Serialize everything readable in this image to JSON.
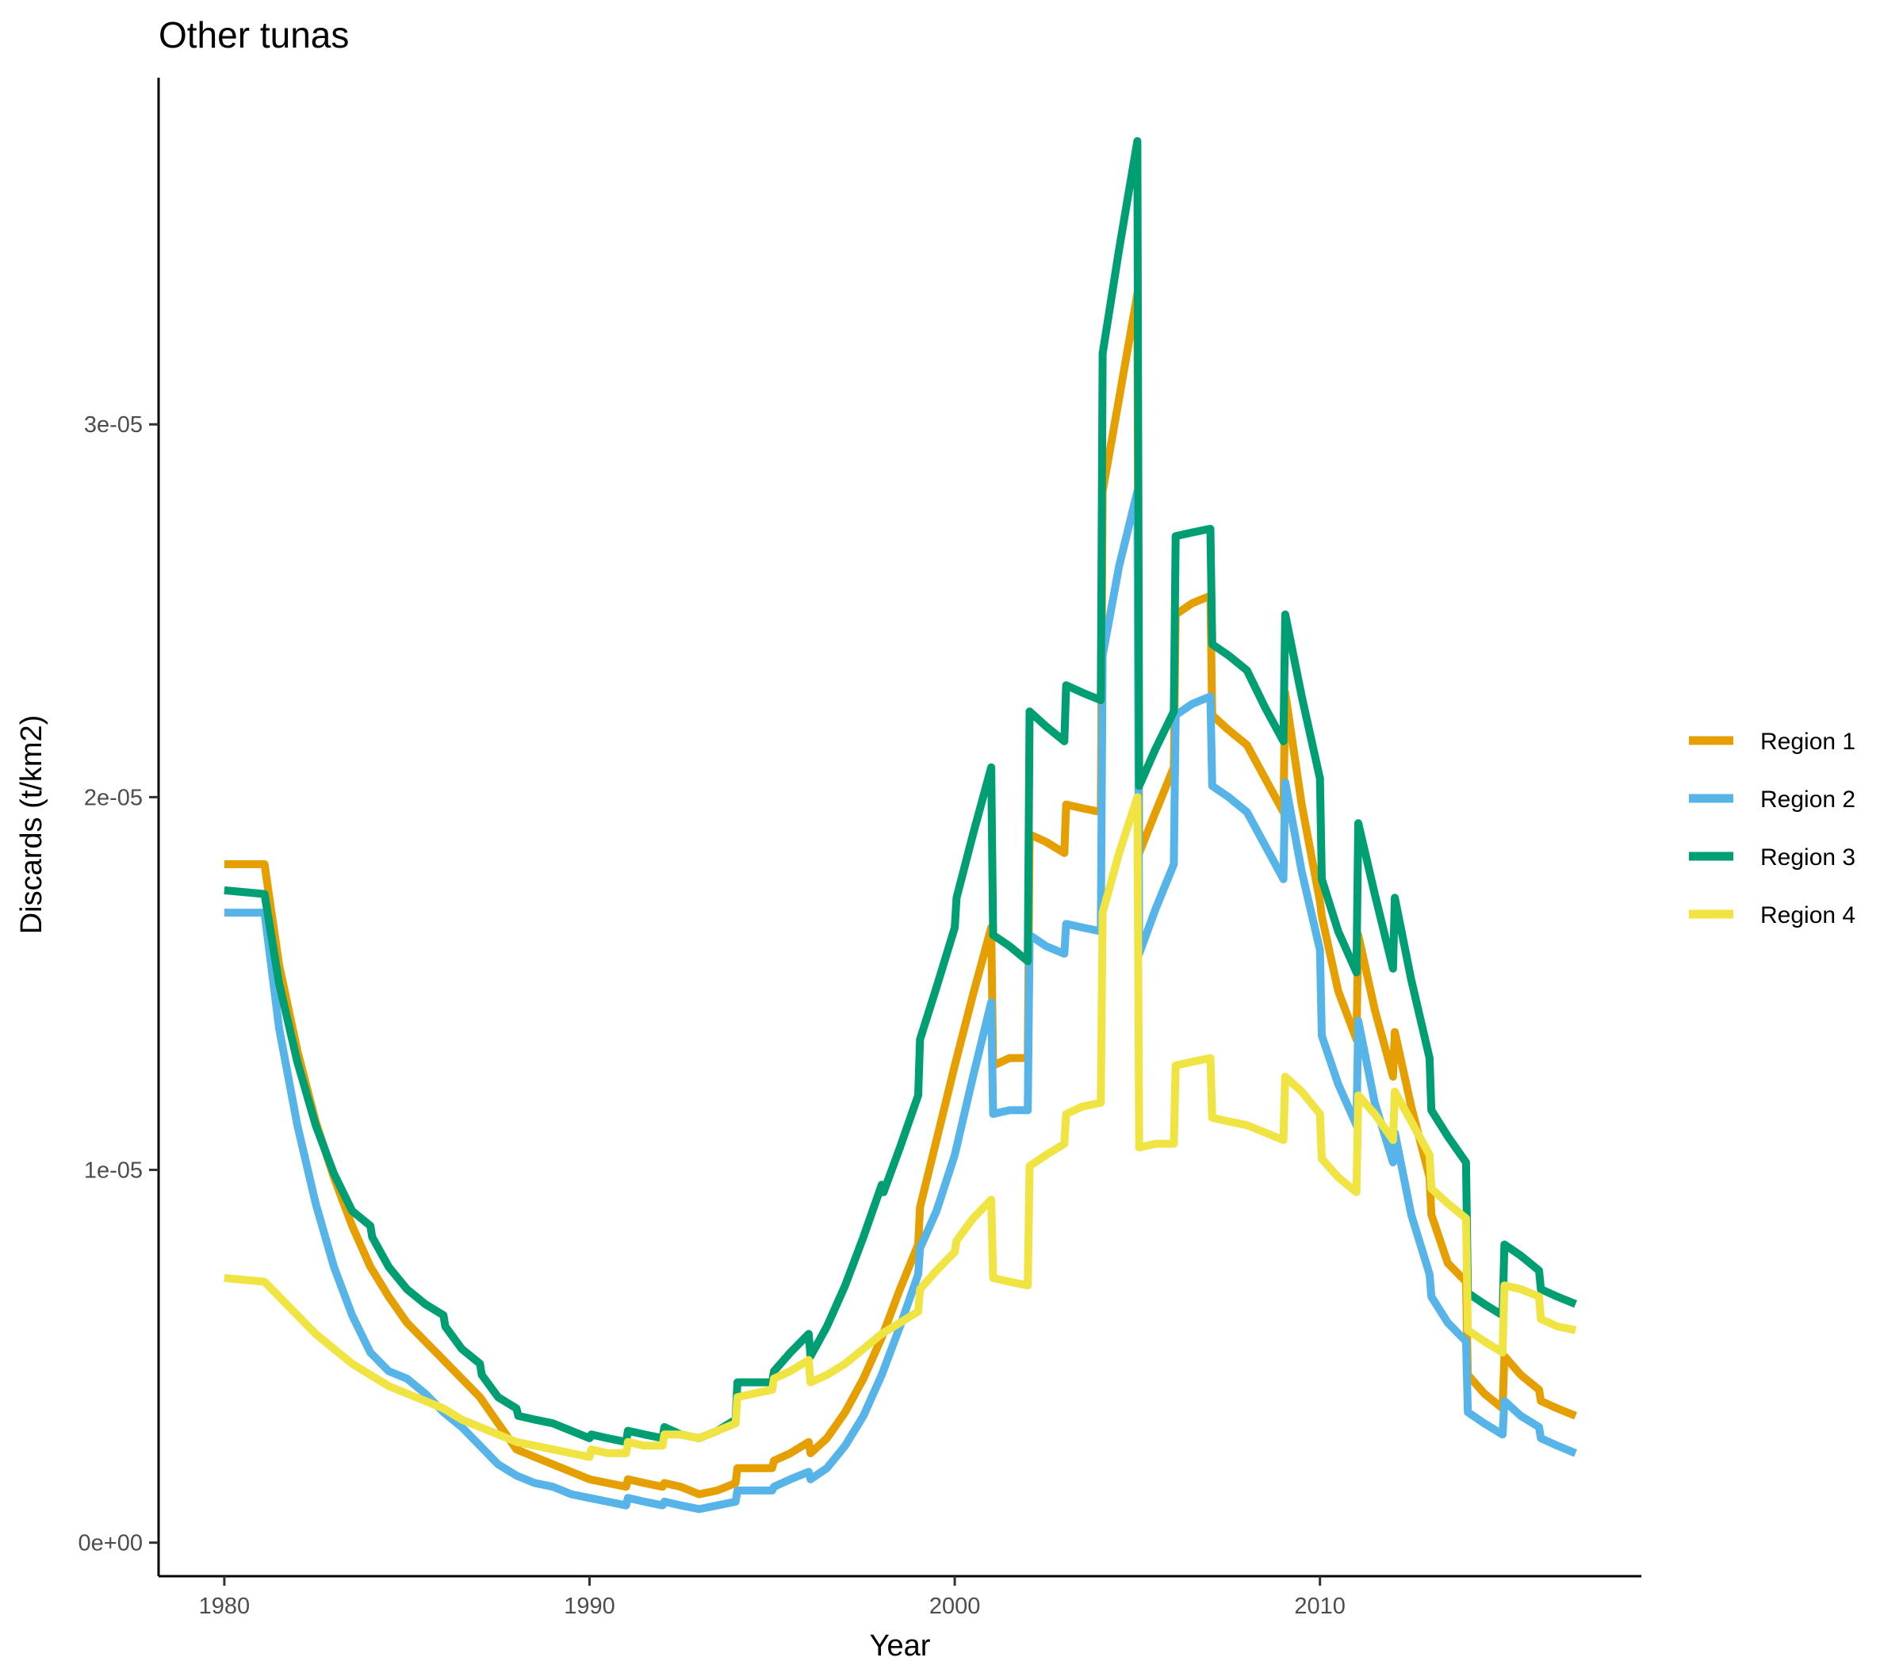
{
  "chart_data": {
    "type": "line",
    "title": "Other tunas",
    "xlabel": "Year",
    "ylabel": "Discards (t/km2)",
    "xlim": [
      1978.2,
      2018.8
    ],
    "ylim": [
      -9e-07,
      3.93e-05
    ],
    "x_ticks": [
      1980,
      1990,
      2000,
      2010
    ],
    "y_ticks": [
      {
        "value": 0,
        "label": "0e+00"
      },
      {
        "value": 1e-05,
        "label": "1e-05"
      },
      {
        "value": 2e-05,
        "label": "2e-05"
      },
      {
        "value": 3e-05,
        "label": "3e-05"
      }
    ],
    "grid": false,
    "legend_position": "right",
    "series": [
      {
        "name": "Region 1",
        "color": "#E69F00",
        "x": [
          1980,
          1981.1,
          1981.5,
          1982,
          1982.5,
          1983,
          1983.5,
          1984,
          1984.5,
          1985,
          1985.5,
          1986,
          1986.5,
          1987,
          1987.5,
          1988,
          1988.5,
          1989,
          1989.5,
          1990,
          1990.5,
          1991,
          1991.05,
          1991.5,
          1992,
          1992.05,
          1992.5,
          1993,
          1993.5,
          1994,
          1994.05,
          1994.5,
          1995,
          1995.05,
          1995.5,
          1996,
          1996.05,
          1996.5,
          1997,
          1997.5,
          1998,
          1998.5,
          1999,
          1999.05,
          1999.5,
          2000,
          2000.5,
          2001,
          2001.05,
          2001.5,
          2002,
          2002.05,
          2002.5,
          2003,
          2003.05,
          2003.5,
          2004,
          2004.05,
          2004.5,
          2005,
          2005.05,
          2005.5,
          2006,
          2006.05,
          2006.5,
          2007,
          2007.05,
          2007.5,
          2008,
          2008.5,
          2009,
          2009.05,
          2009.5,
          2010,
          2010.05,
          2010.5,
          2011,
          2011.05,
          2011.5,
          2012,
          2012.05,
          2012.5,
          2013,
          2013.05,
          2013.5,
          2014,
          2014.05,
          2014.5,
          2015,
          2015.05,
          2015.5,
          2016,
          2016.05,
          2016.5,
          2017
        ],
        "y": [
          1.82e-05,
          1.82e-05,
          1.55e-05,
          1.32e-05,
          1.13e-05,
          9.8e-06,
          8.5e-06,
          7.4e-06,
          6.6e-06,
          5.9e-06,
          5.4e-06,
          4.9e-06,
          4.4e-06,
          3.9e-06,
          3.2e-06,
          2.5e-06,
          2.3e-06,
          2.1e-06,
          1.9e-06,
          1.7e-06,
          1.6e-06,
          1.5e-06,
          1.7e-06,
          1.6e-06,
          1.5e-06,
          1.6e-06,
          1.5e-06,
          1.3e-06,
          1.4e-06,
          1.6e-06,
          2e-06,
          2e-06,
          2e-06,
          2.2e-06,
          2.4e-06,
          2.7e-06,
          2.4e-06,
          2.8e-06,
          3.5e-06,
          4.4e-06,
          5.5e-06,
          6.8e-06,
          8e-06,
          9e-06,
          1.08e-05,
          1.28e-05,
          1.47e-05,
          1.65e-05,
          1.28e-05,
          1.3e-05,
          1.3e-05,
          1.9e-05,
          1.88e-05,
          1.85e-05,
          1.98e-05,
          1.97e-05,
          1.96e-05,
          2.82e-05,
          3.07e-05,
          3.35e-05,
          1.85e-05,
          1.96e-05,
          2.08e-05,
          2.49e-05,
          2.52e-05,
          2.54e-05,
          2.22e-05,
          2.18e-05,
          2.14e-05,
          2.05e-05,
          1.96e-05,
          2.28e-05,
          1.98e-05,
          1.72e-05,
          1.68e-05,
          1.48e-05,
          1.35e-05,
          1.63e-05,
          1.43e-05,
          1.25e-05,
          1.37e-05,
          1.17e-05,
          9.8e-06,
          8.8e-06,
          7.5e-06,
          7e-06,
          4.5e-06,
          4e-06,
          3.6e-06,
          5e-06,
          4.5e-06,
          4.1e-06,
          3.8e-06,
          3.6e-06,
          3.4e-06
        ]
      },
      {
        "name": "Region 2",
        "color": "#56B4E9",
        "x": [
          1980,
          1981.1,
          1981.5,
          1982,
          1982.5,
          1983,
          1983.5,
          1984,
          1984.5,
          1985,
          1985.5,
          1986,
          1986.5,
          1987,
          1987.5,
          1988,
          1988.5,
          1989,
          1989.5,
          1990,
          1990.5,
          1991,
          1991.05,
          1991.5,
          1992,
          1992.05,
          1992.5,
          1993,
          1993.5,
          1994,
          1994.05,
          1994.5,
          1995,
          1995.05,
          1995.5,
          1996,
          1996.05,
          1996.5,
          1997,
          1997.5,
          1998,
          1998.5,
          1999,
          1999.05,
          1999.5,
          2000,
          2000.5,
          2001,
          2001.05,
          2001.5,
          2002,
          2002.05,
          2002.5,
          2003,
          2003.05,
          2003.5,
          2004,
          2004.05,
          2004.5,
          2005,
          2005.05,
          2005.5,
          2006,
          2006.05,
          2006.5,
          2007,
          2007.05,
          2007.5,
          2008,
          2008.5,
          2009,
          2009.05,
          2009.5,
          2010,
          2010.05,
          2010.5,
          2011,
          2011.05,
          2011.5,
          2012,
          2012.05,
          2012.5,
          2013,
          2013.05,
          2013.5,
          2014,
          2014.05,
          2014.5,
          2015,
          2015.05,
          2015.5,
          2016,
          2016.05,
          2016.5,
          2017
        ],
        "y": [
          1.69e-05,
          1.69e-05,
          1.38e-05,
          1.12e-05,
          9.1e-06,
          7.4e-06,
          6.1e-06,
          5.1e-06,
          4.6e-06,
          4.4e-06,
          4e-06,
          3.5e-06,
          3.1e-06,
          2.6e-06,
          2.1e-06,
          1.8e-06,
          1.6e-06,
          1.5e-06,
          1.3e-06,
          1.2e-06,
          1.1e-06,
          1e-06,
          1.2e-06,
          1.1e-06,
          1e-06,
          1.1e-06,
          1e-06,
          9e-07,
          1e-06,
          1.1e-06,
          1.4e-06,
          1.4e-06,
          1.4e-06,
          1.5e-06,
          1.7e-06,
          1.9e-06,
          1.7e-06,
          2e-06,
          2.6e-06,
          3.4e-06,
          4.5e-06,
          5.8e-06,
          7.2e-06,
          7.9e-06,
          8.9e-06,
          1.04e-05,
          1.25e-05,
          1.45e-05,
          1.15e-05,
          1.16e-05,
          1.16e-05,
          1.63e-05,
          1.6e-05,
          1.58e-05,
          1.66e-05,
          1.65e-05,
          1.64e-05,
          2.38e-05,
          2.62e-05,
          2.82e-05,
          1.58e-05,
          1.7e-05,
          1.82e-05,
          2.22e-05,
          2.25e-05,
          2.27e-05,
          2.03e-05,
          2e-05,
          1.96e-05,
          1.87e-05,
          1.78e-05,
          2.04e-05,
          1.8e-05,
          1.59e-05,
          1.36e-05,
          1.23e-05,
          1.12e-05,
          1.4e-05,
          1.18e-05,
          1.02e-05,
          1.1e-05,
          8.8e-06,
          7.2e-06,
          6.6e-06,
          5.9e-06,
          5.4e-06,
          3.5e-06,
          3.2e-06,
          2.9e-06,
          3.8e-06,
          3.4e-06,
          3.1e-06,
          2.8e-06,
          2.6e-06,
          2.4e-06
        ]
      },
      {
        "name": "Region 3",
        "color": "#009E73",
        "x": [
          1980,
          1981.1,
          1981.5,
          1982,
          1982.5,
          1983,
          1983.5,
          1984,
          1984.05,
          1984.5,
          1985,
          1985.5,
          1986,
          1986.05,
          1986.5,
          1987,
          1987.05,
          1987.5,
          1988,
          1988.05,
          1988.5,
          1989,
          1989.5,
          1990,
          1990.05,
          1990.5,
          1991,
          1991.05,
          1991.5,
          1992,
          1992.05,
          1992.5,
          1993,
          1993.5,
          1994,
          1994.05,
          1994.5,
          1995,
          1995.05,
          1995.5,
          1996,
          1996.05,
          1996.5,
          1997,
          1997.5,
          1998,
          1998.05,
          1998.5,
          1999,
          1999.05,
          1999.5,
          2000,
          2000.05,
          2000.5,
          2001,
          2001.05,
          2001.5,
          2002,
          2002.05,
          2002.5,
          2003,
          2003.05,
          2003.5,
          2004,
          2004.05,
          2004.5,
          2005,
          2005.05,
          2005.5,
          2006,
          2006.05,
          2006.5,
          2007,
          2007.05,
          2007.5,
          2008,
          2008.5,
          2009,
          2009.05,
          2009.5,
          2010,
          2010.05,
          2010.5,
          2011,
          2011.05,
          2011.5,
          2012,
          2012.05,
          2012.5,
          2013,
          2013.05,
          2013.5,
          2014,
          2014.05,
          2014.5,
          2015,
          2015.05,
          2015.5,
          2016,
          2016.05,
          2016.5,
          2017
        ],
        "y": [
          1.75e-05,
          1.74e-05,
          1.5e-05,
          1.29e-05,
          1.12e-05,
          9.9e-06,
          8.9e-06,
          8.5e-06,
          8.2e-06,
          7.4e-06,
          6.8e-06,
          6.4e-06,
          6.1e-06,
          5.8e-06,
          5.2e-06,
          4.8e-06,
          4.5e-06,
          3.9e-06,
          3.6e-06,
          3.4e-06,
          3.3e-06,
          3.2e-06,
          3e-06,
          2.8e-06,
          2.9e-06,
          2.8e-06,
          2.7e-06,
          3e-06,
          2.9e-06,
          2.8e-06,
          3.1e-06,
          2.9e-06,
          2.8e-06,
          3e-06,
          3.3e-06,
          4.3e-06,
          4.3e-06,
          4.3e-06,
          4.6e-06,
          5.1e-06,
          5.6e-06,
          5e-06,
          5.8e-06,
          6.9e-06,
          8.2e-06,
          9.6e-06,
          9.4e-06,
          1.06e-05,
          1.2e-05,
          1.35e-05,
          1.49e-05,
          1.65e-05,
          1.73e-05,
          1.9e-05,
          2.08e-05,
          1.63e-05,
          1.6e-05,
          1.56e-05,
          2.23e-05,
          2.19e-05,
          2.15e-05,
          2.3e-05,
          2.28e-05,
          2.26e-05,
          3.19e-05,
          3.47e-05,
          3.76e-05,
          2.03e-05,
          2.13e-05,
          2.23e-05,
          2.7e-05,
          2.71e-05,
          2.72e-05,
          2.41e-05,
          2.38e-05,
          2.34e-05,
          2.24e-05,
          2.15e-05,
          2.49e-05,
          2.27e-05,
          2.05e-05,
          1.78e-05,
          1.64e-05,
          1.53e-05,
          1.93e-05,
          1.74e-05,
          1.54e-05,
          1.73e-05,
          1.51e-05,
          1.3e-05,
          1.16e-05,
          1.09e-05,
          1.02e-05,
          6.7e-06,
          6.4e-06,
          6.1e-06,
          8e-06,
          7.7e-06,
          7.3e-06,
          6.8e-06,
          6.6e-06,
          6.4e-06
        ]
      },
      {
        "name": "Region 4",
        "color": "#F0E442",
        "x": [
          1980,
          1981.1,
          1981.5,
          1982,
          1982.5,
          1983,
          1983.5,
          1984,
          1984.5,
          1985,
          1985.5,
          1986,
          1986.5,
          1987,
          1987.5,
          1988,
          1988.5,
          1989,
          1989.5,
          1990,
          1990.05,
          1990.5,
          1991,
          1991.05,
          1991.5,
          1992,
          1992.05,
          1992.5,
          1993,
          1993.5,
          1994,
          1994.05,
          1994.5,
          1995,
          1995.05,
          1995.5,
          1996,
          1996.05,
          1996.5,
          1997,
          1997.5,
          1998,
          1998.5,
          1999,
          1999.05,
          1999.5,
          2000,
          2000.05,
          2000.5,
          2001,
          2001.05,
          2001.5,
          2002,
          2002.05,
          2002.5,
          2003,
          2003.05,
          2003.5,
          2004,
          2004.05,
          2004.5,
          2005,
          2005.05,
          2005.5,
          2006,
          2006.05,
          2006.5,
          2007,
          2007.05,
          2007.5,
          2008,
          2008.5,
          2009,
          2009.05,
          2009.5,
          2010,
          2010.05,
          2010.5,
          2011,
          2011.05,
          2011.5,
          2012,
          2012.05,
          2012.5,
          2013,
          2013.05,
          2013.5,
          2014,
          2014.05,
          2014.5,
          2015,
          2015.05,
          2015.5,
          2016,
          2016.05,
          2016.5,
          2017
        ],
        "y": [
          7.1e-06,
          7e-06,
          6.6e-06,
          6.1e-06,
          5.6e-06,
          5.2e-06,
          4.8e-06,
          4.5e-06,
          4.2e-06,
          4e-06,
          3.8e-06,
          3.6e-06,
          3.3e-06,
          3.1e-06,
          2.9e-06,
          2.7e-06,
          2.6e-06,
          2.5e-06,
          2.4e-06,
          2.3e-06,
          2.5e-06,
          2.4e-06,
          2.4e-06,
          2.7e-06,
          2.6e-06,
          2.6e-06,
          2.9e-06,
          2.9e-06,
          2.8e-06,
          3e-06,
          3.2e-06,
          3.9e-06,
          4e-06,
          4.1e-06,
          4.4e-06,
          4.6e-06,
          4.9e-06,
          4.3e-06,
          4.5e-06,
          4.8e-06,
          5.2e-06,
          5.6e-06,
          5.9e-06,
          6.2e-06,
          6.8e-06,
          7.3e-06,
          7.8e-06,
          8.1e-06,
          8.7e-06,
          9.2e-06,
          7.1e-06,
          7e-06,
          6.9e-06,
          1.01e-05,
          1.04e-05,
          1.07e-05,
          1.15e-05,
          1.17e-05,
          1.18e-05,
          1.69e-05,
          1.85e-05,
          2e-05,
          1.06e-05,
          1.07e-05,
          1.07e-05,
          1.28e-05,
          1.29e-05,
          1.3e-05,
          1.14e-05,
          1.13e-05,
          1.12e-05,
          1.1e-05,
          1.08e-05,
          1.25e-05,
          1.21e-05,
          1.15e-05,
          1.03e-05,
          9.8e-06,
          9.4e-06,
          1.2e-05,
          1.15e-05,
          1.08e-05,
          1.21e-05,
          1.13e-05,
          1.04e-05,
          9.5e-06,
          9.1e-06,
          8.7e-06,
          5.7e-06,
          5.4e-06,
          5.1e-06,
          6.9e-06,
          6.8e-06,
          6.6e-06,
          6e-06,
          5.8e-06,
          5.7e-06
        ]
      }
    ]
  }
}
